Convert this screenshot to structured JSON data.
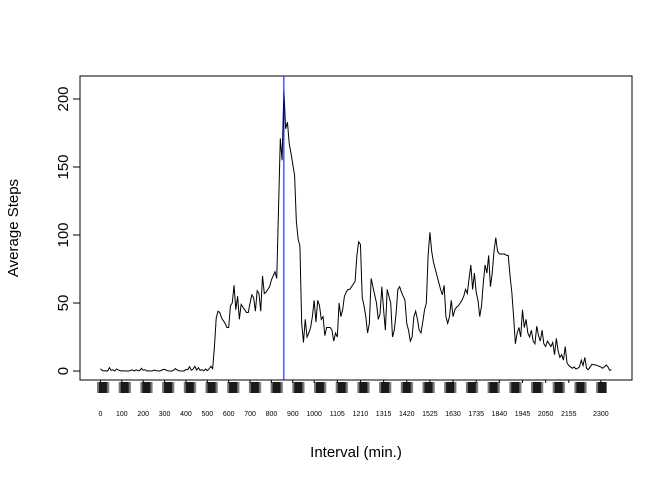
{
  "chart_data": {
    "type": "line",
    "x_label": "Interval (min.)",
    "y_label": "Average Steps",
    "color": "#000000",
    "values": [
      1.7,
      0.3,
      0.1,
      0.2,
      0,
      2.5,
      0.5,
      0.9,
      0,
      1.5,
      0.8,
      0.3,
      0,
      0.2,
      0,
      0,
      0,
      0.5,
      0.8,
      0,
      0.9,
      0.4,
      0.2,
      2,
      0.6,
      1,
      0,
      0.2,
      0,
      0,
      0.7,
      0.4,
      0.1,
      0,
      0.3,
      1.1,
      1.2,
      0.5,
      0.1,
      0,
      0,
      0.5,
      1.8,
      0.8,
      0.3,
      0,
      0,
      0,
      1.2,
      0.9,
      3.2,
      0.6,
      1.4,
      3.5,
      0.7,
      2.5,
      0.4,
      1.1,
      0.1,
      1.5,
      0.3,
      1.6,
      3.5,
      1.7,
      18,
      39,
      44,
      43,
      39,
      37,
      35,
      32,
      32,
      48,
      50,
      63,
      45,
      55,
      38,
      49,
      47,
      45,
      43,
      43,
      50,
      56,
      54,
      44,
      59,
      57,
      44,
      70,
      57,
      58,
      60,
      62,
      67,
      70,
      73,
      68,
      120,
      171,
      155,
      206,
      178,
      183,
      167,
      160,
      152,
      144,
      110,
      97,
      92,
      35,
      21,
      38,
      25,
      28,
      32,
      40,
      52,
      36,
      52,
      48,
      38,
      40,
      26,
      32,
      32,
      32,
      30,
      22,
      28,
      25,
      50,
      40,
      45,
      55,
      58,
      60,
      60,
      62,
      64,
      66,
      85,
      95,
      93,
      54,
      48,
      40,
      28,
      35,
      68,
      62,
      56,
      50,
      38,
      42,
      62,
      45,
      30,
      60,
      55,
      50,
      25,
      30,
      42,
      60,
      62,
      58,
      55,
      52,
      35,
      30,
      22,
      25,
      40,
      44,
      38,
      30,
      28,
      36,
      45,
      50,
      85,
      102,
      88,
      80,
      75,
      70,
      65,
      60,
      56,
      63,
      40,
      35,
      40,
      52,
      40,
      45,
      47,
      48,
      50,
      52,
      55,
      60,
      57,
      68,
      78,
      60,
      72,
      58,
      52,
      40,
      48,
      65,
      78,
      72,
      85,
      62,
      72,
      88,
      98,
      88,
      86,
      86,
      86,
      86,
      85,
      85,
      70,
      58,
      40,
      20,
      28,
      32,
      25,
      45,
      32,
      38,
      28,
      25,
      30,
      22,
      20,
      33,
      26,
      22,
      30,
      20,
      18,
      22,
      20,
      18,
      21,
      12,
      24,
      15,
      10,
      12,
      8,
      18,
      6,
      4,
      3,
      2,
      3,
      1.5,
      2,
      3,
      8,
      4,
      10,
      2,
      1,
      3,
      5,
      4.5,
      4.5,
      4,
      3.5,
      3,
      2,
      3,
      4.5,
      3,
      0.5,
      1
    ],
    "vline": {
      "x": 103,
      "color": "#0000ff"
    },
    "xlim": [
      -11.5,
      298.5
    ],
    "xticks": [
      {
        "value": 0,
        "label": "0"
      },
      {
        "value": 12,
        "label": "100"
      },
      {
        "value": 24,
        "label": "200"
      },
      {
        "value": 36,
        "label": "300"
      },
      {
        "value": 48,
        "label": "400"
      },
      {
        "value": 60,
        "label": "500"
      },
      {
        "value": 72,
        "label": "600"
      },
      {
        "value": 84,
        "label": "700"
      },
      {
        "value": 96,
        "label": "800"
      },
      {
        "value": 108,
        "label": "900"
      },
      {
        "value": 120,
        "label": "1000"
      },
      {
        "value": 133,
        "label": "1105"
      },
      {
        "value": 146,
        "label": "1210"
      },
      {
        "value": 159,
        "label": "1315"
      },
      {
        "value": 172,
        "label": "1420"
      },
      {
        "value": 185,
        "label": "1525"
      },
      {
        "value": 198,
        "label": "1630"
      },
      {
        "value": 211,
        "label": "1735"
      },
      {
        "value": 224,
        "label": "1840"
      },
      {
        "value": 237,
        "label": "1945"
      },
      {
        "value": 250,
        "label": "2050"
      },
      {
        "value": 263,
        "label": "2155"
      },
      {
        "value": 281,
        "label": "2300"
      }
    ],
    "ylim": [
      -6.6,
      216.9
    ],
    "yticks": [
      0,
      50,
      100,
      150,
      200
    ]
  }
}
